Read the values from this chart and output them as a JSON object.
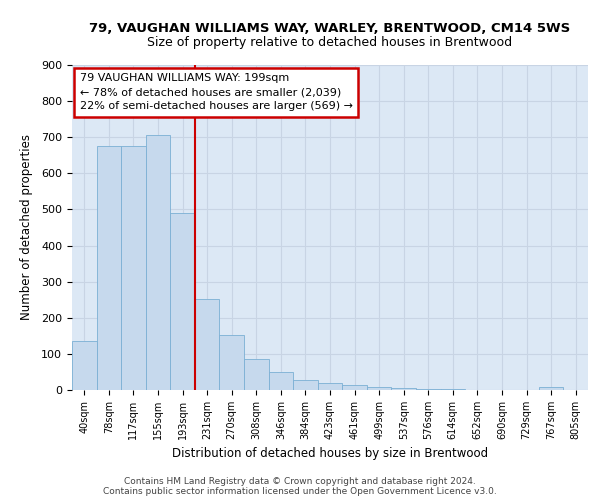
{
  "title1": "79, VAUGHAN WILLIAMS WAY, WARLEY, BRENTWOOD, CM14 5WS",
  "title2": "Size of property relative to detached houses in Brentwood",
  "xlabel": "Distribution of detached houses by size in Brentwood",
  "ylabel": "Number of detached properties",
  "footer1": "Contains HM Land Registry data © Crown copyright and database right 2024.",
  "footer2": "Contains public sector information licensed under the Open Government Licence v3.0.",
  "categories": [
    "40sqm",
    "78sqm",
    "117sqm",
    "155sqm",
    "193sqm",
    "231sqm",
    "270sqm",
    "308sqm",
    "346sqm",
    "384sqm",
    "423sqm",
    "461sqm",
    "499sqm",
    "537sqm",
    "576sqm",
    "614sqm",
    "652sqm",
    "690sqm",
    "729sqm",
    "767sqm",
    "805sqm"
  ],
  "values": [
    137,
    675,
    675,
    706,
    490,
    253,
    152,
    85,
    50,
    28,
    20,
    15,
    8,
    5,
    3,
    2,
    0,
    0,
    0,
    8,
    0
  ],
  "bar_color": "#c6d9ed",
  "bar_edge_color": "#7bafd4",
  "red_line_x": 4.5,
  "annotation_line1": "79 VAUGHAN WILLIAMS WAY: 199sqm",
  "annotation_line2": "← 78% of detached houses are smaller (2,039)",
  "annotation_line3": "22% of semi-detached houses are larger (569) →",
  "annotation_box_color": "#ffffff",
  "annotation_box_edge": "#cc0000",
  "red_line_color": "#cc0000",
  "grid_color": "#c8d4e4",
  "background_color": "#dce8f5",
  "ylim": [
    0,
    900
  ],
  "yticks": [
    0,
    100,
    200,
    300,
    400,
    500,
    600,
    700,
    800,
    900
  ]
}
